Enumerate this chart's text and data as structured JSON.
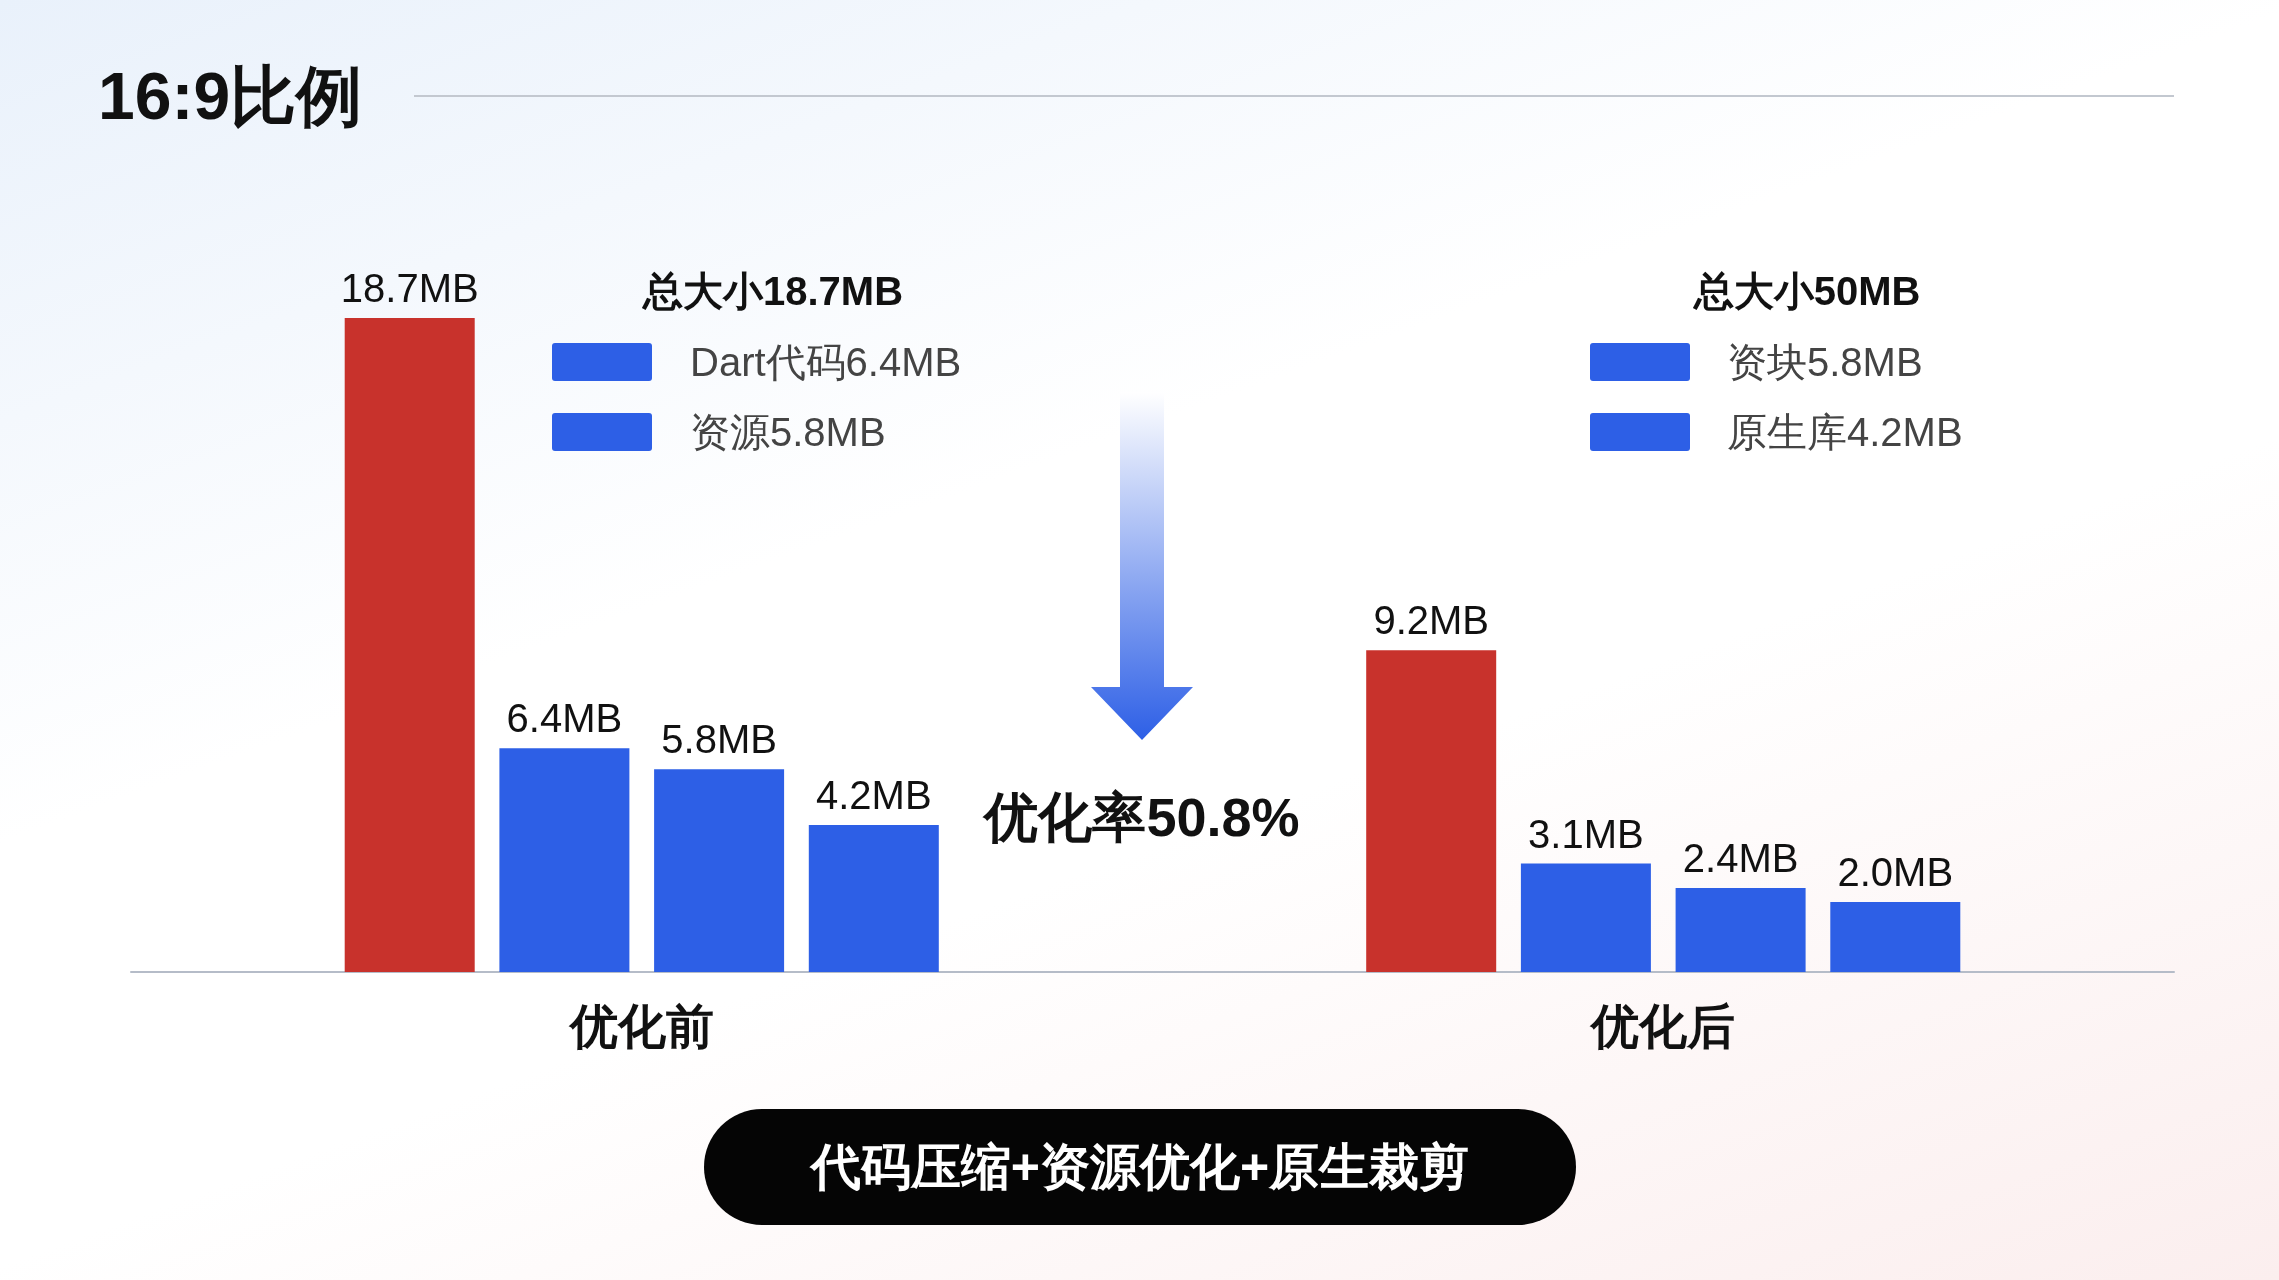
{
  "chart_data": {
    "type": "bar",
    "title": "16:9比例",
    "categories": [
      "优化前",
      "优化后"
    ],
    "series": [
      {
        "color": "#c8322c",
        "values": [
          18.7,
          9.2
        ],
        "value_labels": [
          "18.7MB",
          "9.2MB"
        ]
      },
      {
        "color": "#2d5fe6",
        "values": [
          6.4,
          3.1
        ],
        "value_labels": [
          "6.4MB",
          "3.1MB"
        ]
      },
      {
        "color": "#2d5fe6",
        "values": [
          5.8,
          2.4
        ],
        "value_labels": [
          "5.8MB",
          "2.4MB"
        ]
      },
      {
        "color": "#2d5fe6",
        "values": [
          4.2,
          2.0
        ],
        "value_labels": [
          "4.2MB",
          "2.0MB"
        ]
      }
    ],
    "annotations": [
      "总大小18.7MB",
      "Dart代码6.4MB",
      "资源5.8MB",
      "总大小50MB",
      "资块5.8MB",
      "原生库4.2MB",
      "优化率50.8%",
      "代码压缩+资源优化+原生裁剪"
    ]
  }
}
